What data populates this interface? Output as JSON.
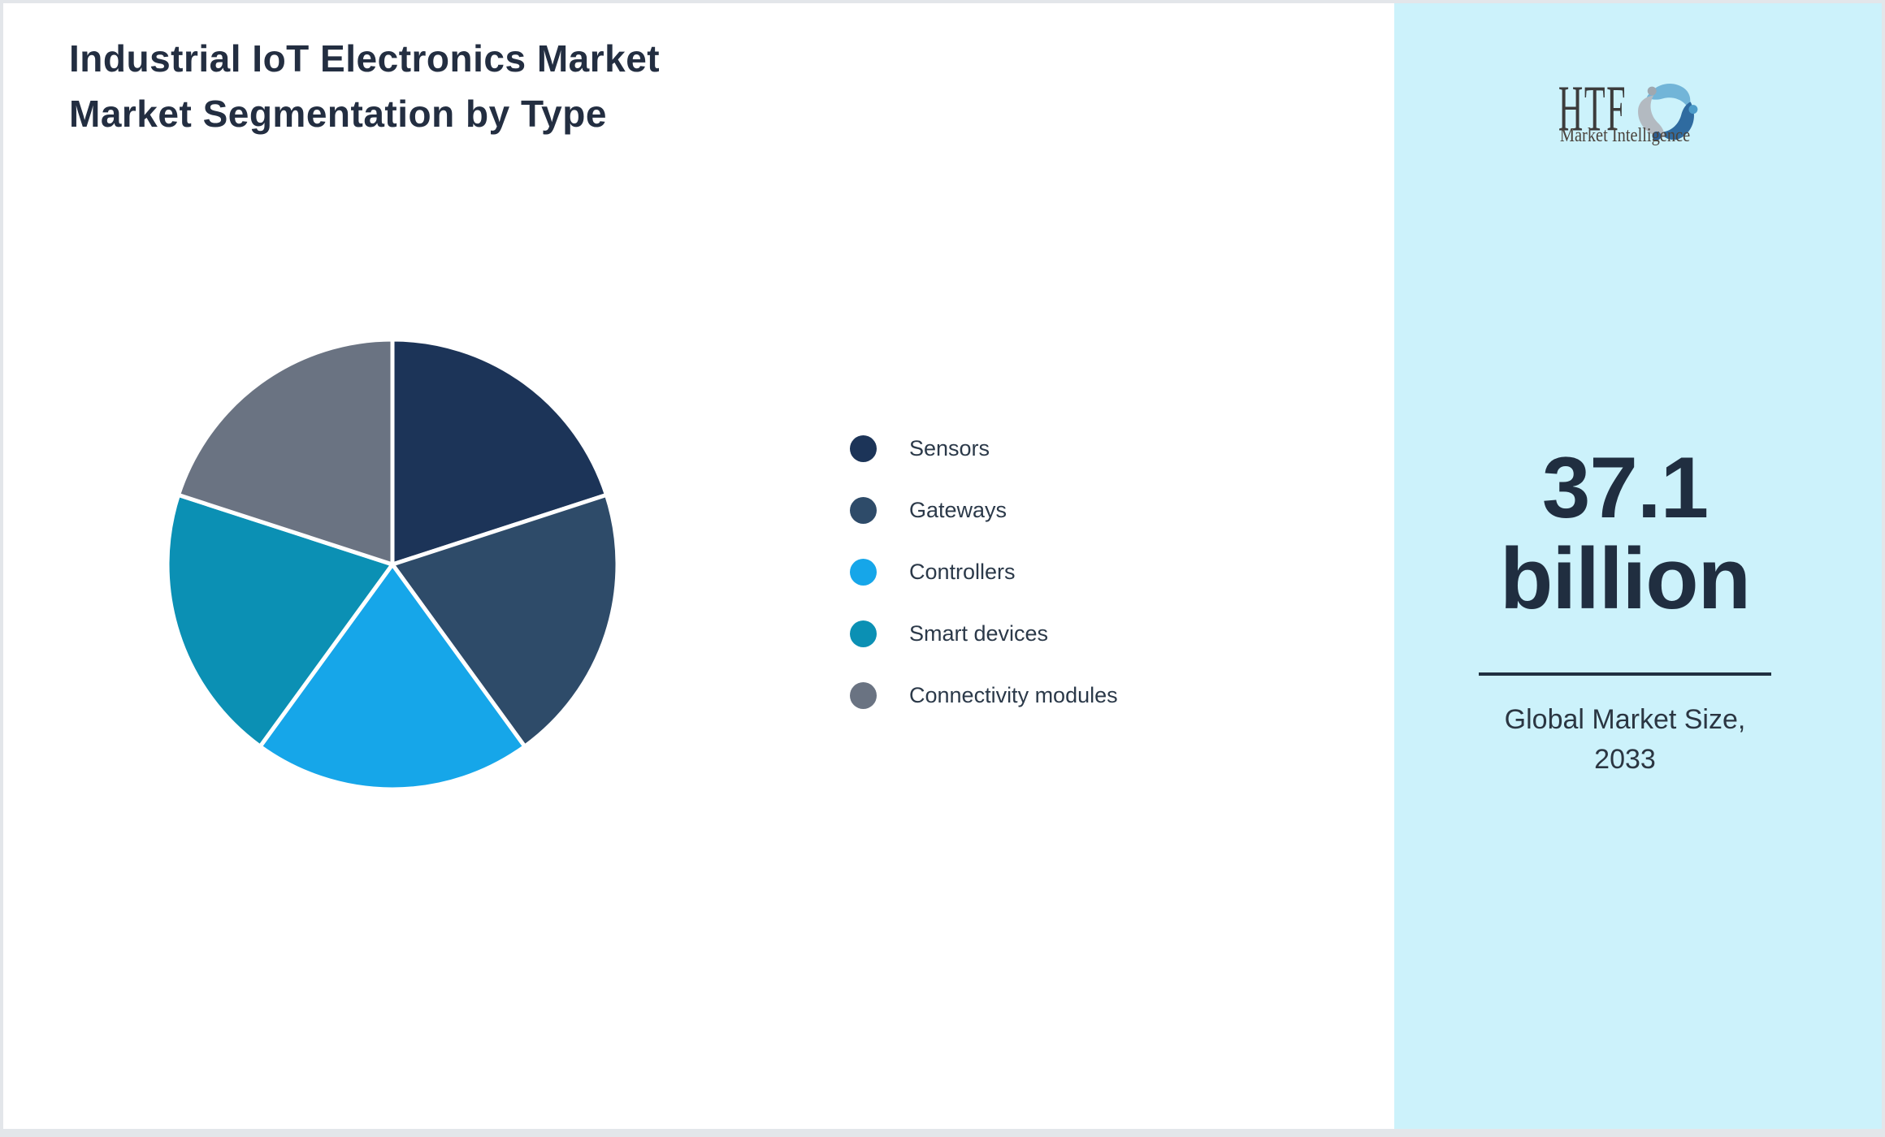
{
  "title": {
    "line1": "Industrial IoT Electronics Market",
    "line2": "Market Segmentation by Type"
  },
  "brand": {
    "name": "HTF",
    "tagline": "Market Intelligence",
    "icon": "dolphin-swirl-icon",
    "icon_colors": [
      "#72b5d8",
      "#2f6ba0",
      "#b3bac1"
    ],
    "icon_dot_colors": [
      "#4d9cc9",
      "#2c5f96",
      "#9fa8b0"
    ]
  },
  "stat_panel": {
    "value": "37.1",
    "unit": "billion",
    "caption_line1": "Global Market Size,",
    "caption_line2": "2033",
    "background": "#ccf2fb",
    "text_color": "#202e40"
  },
  "chart_data": {
    "type": "pie",
    "title": "Industrial IoT Electronics Market — Market Segmentation by Type",
    "labels": [
      "Sensors",
      "Gateways",
      "Controllers",
      "Smart devices",
      "Connectivity modules"
    ],
    "values": [
      20,
      20,
      20,
      20,
      20
    ],
    "unit": "percent",
    "colors": [
      "#1c3458",
      "#2e4b69",
      "#16a6e9",
      "#0b90b4",
      "#6a7382"
    ],
    "start_angle_deg": 0,
    "direction": "clockwise",
    "legend_position": "right",
    "slice_gap_color": "#ffffff"
  }
}
